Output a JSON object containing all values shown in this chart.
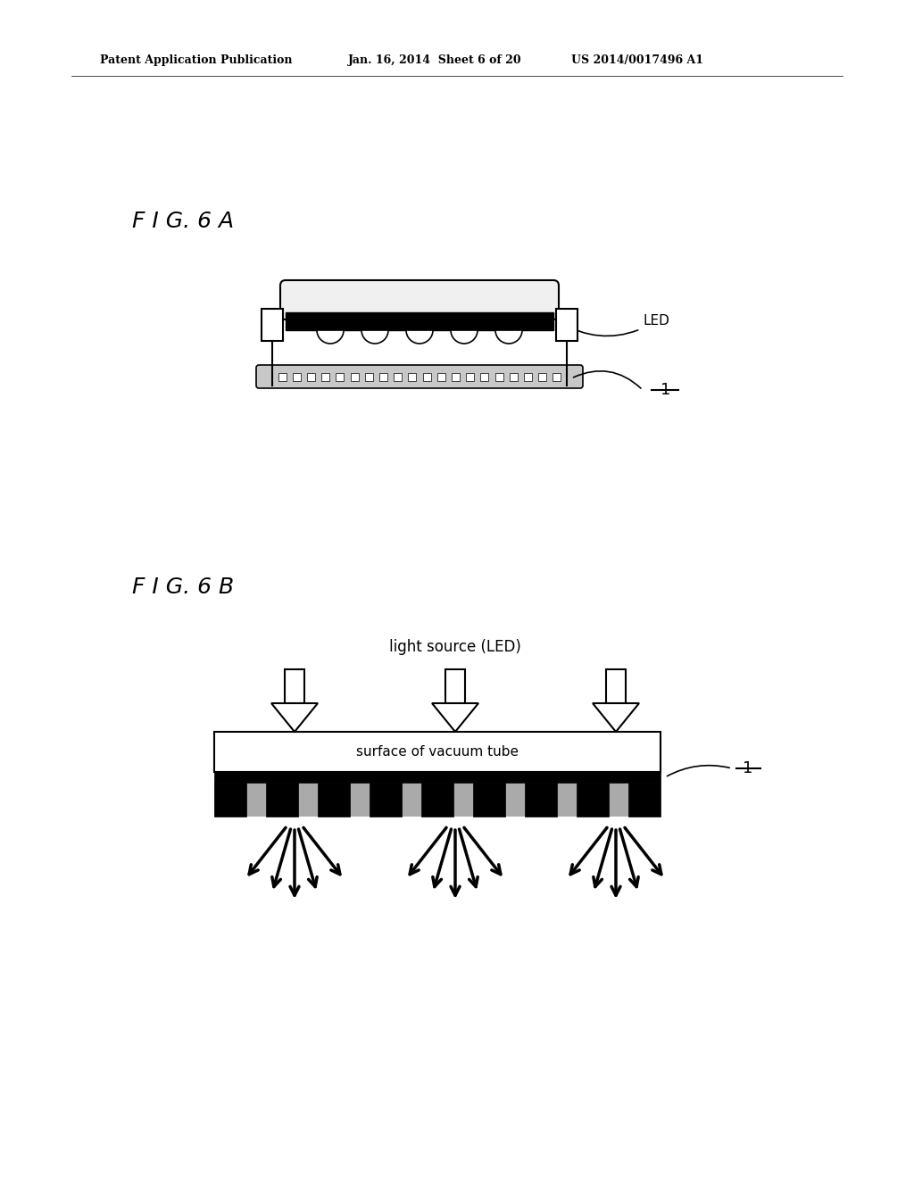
{
  "bg_color": "#ffffff",
  "header_left": "Patent Application Publication",
  "header_mid": "Jan. 16, 2014  Sheet 6 of 20",
  "header_right": "US 2014/0017496 A1",
  "fig6a_label": "F I G. 6 A",
  "fig6b_label": "F I G. 6 B",
  "led_label": "LED",
  "label_1": "1",
  "light_source_label": "light source (LED)",
  "vacuum_tube_label": "surface of vacuum tube"
}
